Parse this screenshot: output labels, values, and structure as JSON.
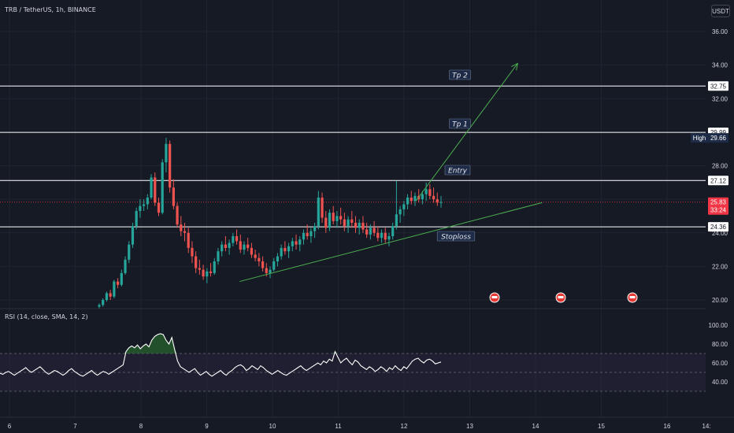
{
  "header": {
    "symbol_title": "TRB / TetherUS, 1h, BINANCE",
    "currency_button": "USDT"
  },
  "rsi": {
    "title": "RSI (14, close, SMA, 14, 2)",
    "upper": 70,
    "lower": 30,
    "axis_labels": [
      "100.00",
      "80.00",
      "60.00",
      "40.00"
    ],
    "values": [
      49,
      48,
      50,
      51,
      49,
      47,
      49,
      51,
      53,
      55,
      52,
      50,
      52,
      54,
      56,
      53,
      50,
      48,
      50,
      52,
      51,
      49,
      47,
      49,
      52,
      54,
      51,
      49,
      47,
      46,
      48,
      50,
      52,
      49,
      47,
      49,
      51,
      50,
      48,
      50,
      52,
      54,
      56,
      58,
      72,
      76,
      78,
      76,
      79,
      75,
      78,
      80,
      77,
      84,
      88,
      90,
      91,
      90,
      84,
      80,
      87,
      74,
      62,
      56,
      54,
      52,
      50,
      52,
      54,
      50,
      47,
      49,
      51,
      48,
      46,
      48,
      50,
      52,
      49,
      47,
      50,
      52,
      55,
      57,
      58,
      56,
      52,
      54,
      57,
      55,
      53,
      57,
      55,
      52,
      50,
      48,
      50,
      52,
      50,
      48,
      47,
      49,
      51,
      53,
      55,
      57,
      54,
      52,
      54,
      56,
      58,
      60,
      58,
      62,
      60,
      64,
      62,
      72,
      66,
      60,
      63,
      65,
      61,
      58,
      63,
      61,
      57,
      55,
      53,
      56,
      54,
      51,
      53,
      56,
      54,
      51,
      55,
      53,
      57,
      54,
      52,
      56,
      54,
      58,
      62,
      64,
      65,
      62,
      60,
      63,
      64,
      62,
      59,
      60,
      61
    ]
  },
  "price_axis": {
    "labels": [
      "36.00",
      "34.00",
      "32.00",
      "28.00",
      "24.00",
      "22.00",
      "20.00"
    ],
    "tags": [
      {
        "value": 32.75,
        "label": "32.75",
        "style": "white"
      },
      {
        "value": 29.99,
        "label": "29.99",
        "style": "white"
      },
      {
        "value": 27.12,
        "label": "27.12",
        "style": "white"
      },
      {
        "value": 24.36,
        "label": "24.36",
        "style": "white"
      }
    ],
    "high_tag": {
      "caption": "High",
      "value": 29.66,
      "label": "29.66"
    },
    "last_price": {
      "value": 25.83,
      "label": "25.83",
      "countdown": "33:24"
    }
  },
  "time_axis": {
    "labels": [
      "6",
      "7",
      "8",
      "9",
      "10",
      "11",
      "12",
      "13",
      "14",
      "15",
      "16",
      "14:"
    ]
  },
  "annotations": {
    "levels": [
      {
        "value": 32.75,
        "name": "Tp 2"
      },
      {
        "value": 29.99,
        "name": "Tp 1"
      },
      {
        "value": 27.12,
        "name": "Entry"
      },
      {
        "value": 24.36,
        "name": "Stoploss"
      }
    ]
  },
  "colors": {
    "background": "#161a25",
    "grid": "#1f2430",
    "up": "#26a69a",
    "down": "#ef5350",
    "text": "#d1d4dc",
    "levels": "#ffffff",
    "trend_arrow": "#4caf50",
    "rsi_line": "#ffffff",
    "rsi_band": "#2a2540",
    "last_price": "#f23645"
  },
  "chart_data": {
    "type": "candlestick",
    "title": "TRB / TetherUS, 1h, BINANCE",
    "x_labels": [
      "6",
      "7",
      "8",
      "9",
      "10",
      "11",
      "12",
      "13",
      "14",
      "15",
      "16"
    ],
    "ylim": [
      19.8,
      37.0
    ],
    "grid": true,
    "note_levels": {
      "Tp 2": 32.75,
      "Tp 1": 29.99,
      "Entry": 27.12,
      "Stoploss": 24.36
    },
    "trendline": {
      "start": [
        9.5,
        21.1
      ],
      "end": [
        14.1,
        25.8
      ]
    },
    "target_arrow": {
      "start": [
        12.6,
        25.9
      ],
      "end": [
        13.8,
        34.1
      ]
    },
    "high": 29.66,
    "last": 25.83,
    "candles": [
      [
        19.6,
        19.8,
        19.5,
        19.7
      ],
      [
        19.7,
        20.1,
        19.6,
        20.0
      ],
      [
        20.0,
        20.5,
        19.9,
        20.4
      ],
      [
        20.4,
        20.6,
        20.0,
        20.2
      ],
      [
        20.2,
        21.2,
        20.1,
        21.1
      ],
      [
        21.1,
        21.3,
        20.7,
        20.9
      ],
      [
        20.9,
        21.8,
        20.8,
        21.6
      ],
      [
        21.6,
        22.6,
        21.5,
        22.4
      ],
      [
        22.4,
        23.5,
        22.2,
        23.3
      ],
      [
        23.3,
        24.6,
        23.1,
        24.4
      ],
      [
        24.4,
        25.5,
        24.2,
        25.3
      ],
      [
        25.3,
        26.0,
        24.9,
        25.6
      ],
      [
        25.6,
        26.0,
        25.3,
        25.7
      ],
      [
        25.7,
        26.3,
        25.4,
        26.1
      ],
      [
        26.1,
        27.5,
        26.0,
        27.3
      ],
      [
        27.3,
        27.6,
        25.6,
        25.8
      ],
      [
        25.8,
        26.1,
        25.0,
        25.2
      ],
      [
        25.2,
        28.4,
        25.1,
        28.2
      ],
      [
        28.2,
        29.66,
        27.6,
        29.3
      ],
      [
        29.3,
        29.5,
        26.4,
        26.7
      ],
      [
        26.7,
        27.2,
        25.4,
        25.6
      ],
      [
        25.6,
        25.8,
        24.3,
        24.5
      ],
      [
        24.5,
        25.0,
        23.8,
        24.1
      ],
      [
        24.1,
        24.6,
        23.5,
        24.0
      ],
      [
        24.0,
        24.3,
        22.8,
        23.1
      ],
      [
        23.1,
        23.5,
        22.2,
        22.6
      ],
      [
        22.6,
        22.9,
        21.6,
        21.9
      ],
      [
        21.9,
        22.4,
        21.5,
        21.8
      ],
      [
        21.8,
        22.1,
        21.2,
        21.4
      ],
      [
        21.4,
        21.9,
        21.0,
        21.7
      ],
      [
        21.7,
        22.2,
        21.4,
        21.6
      ],
      [
        21.6,
        22.5,
        21.5,
        22.3
      ],
      [
        22.3,
        23.1,
        22.1,
        22.9
      ],
      [
        22.9,
        23.5,
        22.6,
        23.3
      ],
      [
        23.3,
        23.8,
        22.9,
        23.1
      ],
      [
        23.1,
        23.6,
        22.7,
        23.4
      ],
      [
        23.4,
        24.0,
        23.2,
        23.8
      ],
      [
        23.8,
        24.2,
        23.3,
        23.5
      ],
      [
        23.5,
        23.9,
        22.8,
        23.0
      ],
      [
        23.0,
        23.5,
        22.7,
        23.3
      ],
      [
        23.3,
        23.7,
        22.9,
        23.1
      ],
      [
        23.1,
        23.4,
        22.5,
        22.7
      ],
      [
        22.7,
        23.0,
        22.3,
        22.5
      ],
      [
        22.5,
        22.8,
        22.0,
        22.3
      ],
      [
        22.3,
        22.6,
        21.7,
        21.9
      ],
      [
        21.9,
        22.2,
        21.4,
        21.6
      ],
      [
        21.6,
        22.0,
        21.3,
        21.8
      ],
      [
        21.8,
        22.5,
        21.7,
        22.3
      ],
      [
        22.3,
        22.8,
        22.0,
        22.6
      ],
      [
        22.6,
        23.3,
        22.4,
        23.1
      ],
      [
        23.1,
        23.5,
        22.7,
        22.9
      ],
      [
        22.9,
        23.4,
        22.5,
        23.2
      ],
      [
        23.2,
        23.7,
        22.9,
        23.5
      ],
      [
        23.5,
        23.9,
        23.0,
        23.3
      ],
      [
        23.3,
        23.8,
        22.9,
        23.6
      ],
      [
        23.6,
        24.2,
        23.3,
        24.0
      ],
      [
        24.0,
        24.5,
        23.6,
        23.8
      ],
      [
        23.8,
        24.3,
        23.4,
        24.1
      ],
      [
        24.1,
        24.6,
        23.7,
        24.4
      ],
      [
        24.4,
        26.5,
        24.2,
        26.1
      ],
      [
        26.1,
        26.4,
        24.6,
        24.9
      ],
      [
        24.9,
        25.3,
        24.0,
        24.3
      ],
      [
        24.3,
        25.4,
        24.1,
        25.2
      ],
      [
        25.2,
        25.6,
        24.5,
        24.7
      ],
      [
        24.7,
        25.3,
        24.3,
        25.0
      ],
      [
        25.0,
        25.5,
        24.5,
        24.8
      ],
      [
        24.8,
        25.2,
        24.1,
        24.4
      ],
      [
        24.4,
        25.0,
        24.0,
        24.8
      ],
      [
        24.8,
        25.3,
        24.3,
        24.6
      ],
      [
        24.6,
        25.0,
        24.0,
        24.3
      ],
      [
        24.3,
        24.8,
        23.9,
        24.6
      ],
      [
        24.6,
        25.0,
        24.0,
        24.2
      ],
      [
        24.2,
        24.6,
        23.7,
        23.9
      ],
      [
        23.9,
        24.5,
        23.6,
        24.3
      ],
      [
        24.3,
        24.7,
        23.8,
        24.0
      ],
      [
        24.0,
        24.4,
        23.5,
        23.7
      ],
      [
        23.7,
        24.2,
        23.4,
        24.0
      ],
      [
        24.0,
        24.3,
        23.4,
        23.6
      ],
      [
        23.6,
        24.0,
        23.2,
        23.8
      ],
      [
        23.8,
        24.6,
        23.6,
        24.4
      ],
      [
        24.4,
        27.1,
        24.2,
        25.1
      ],
      [
        25.1,
        25.6,
        24.6,
        25.4
      ],
      [
        25.4,
        25.9,
        25.0,
        25.7
      ],
      [
        25.7,
        26.3,
        25.4,
        26.1
      ],
      [
        26.1,
        26.5,
        25.7,
        25.9
      ],
      [
        25.9,
        26.4,
        25.6,
        26.2
      ],
      [
        26.2,
        26.6,
        25.8,
        26.0
      ],
      [
        26.0,
        26.5,
        25.7,
        26.3
      ],
      [
        26.3,
        27.0,
        25.9,
        26.6
      ],
      [
        26.6,
        26.9,
        26.0,
        26.2
      ],
      [
        26.2,
        26.7,
        25.8,
        26.0
      ],
      [
        26.0,
        26.4,
        25.6,
        25.8
      ],
      [
        25.8,
        26.2,
        25.5,
        25.83
      ]
    ]
  }
}
